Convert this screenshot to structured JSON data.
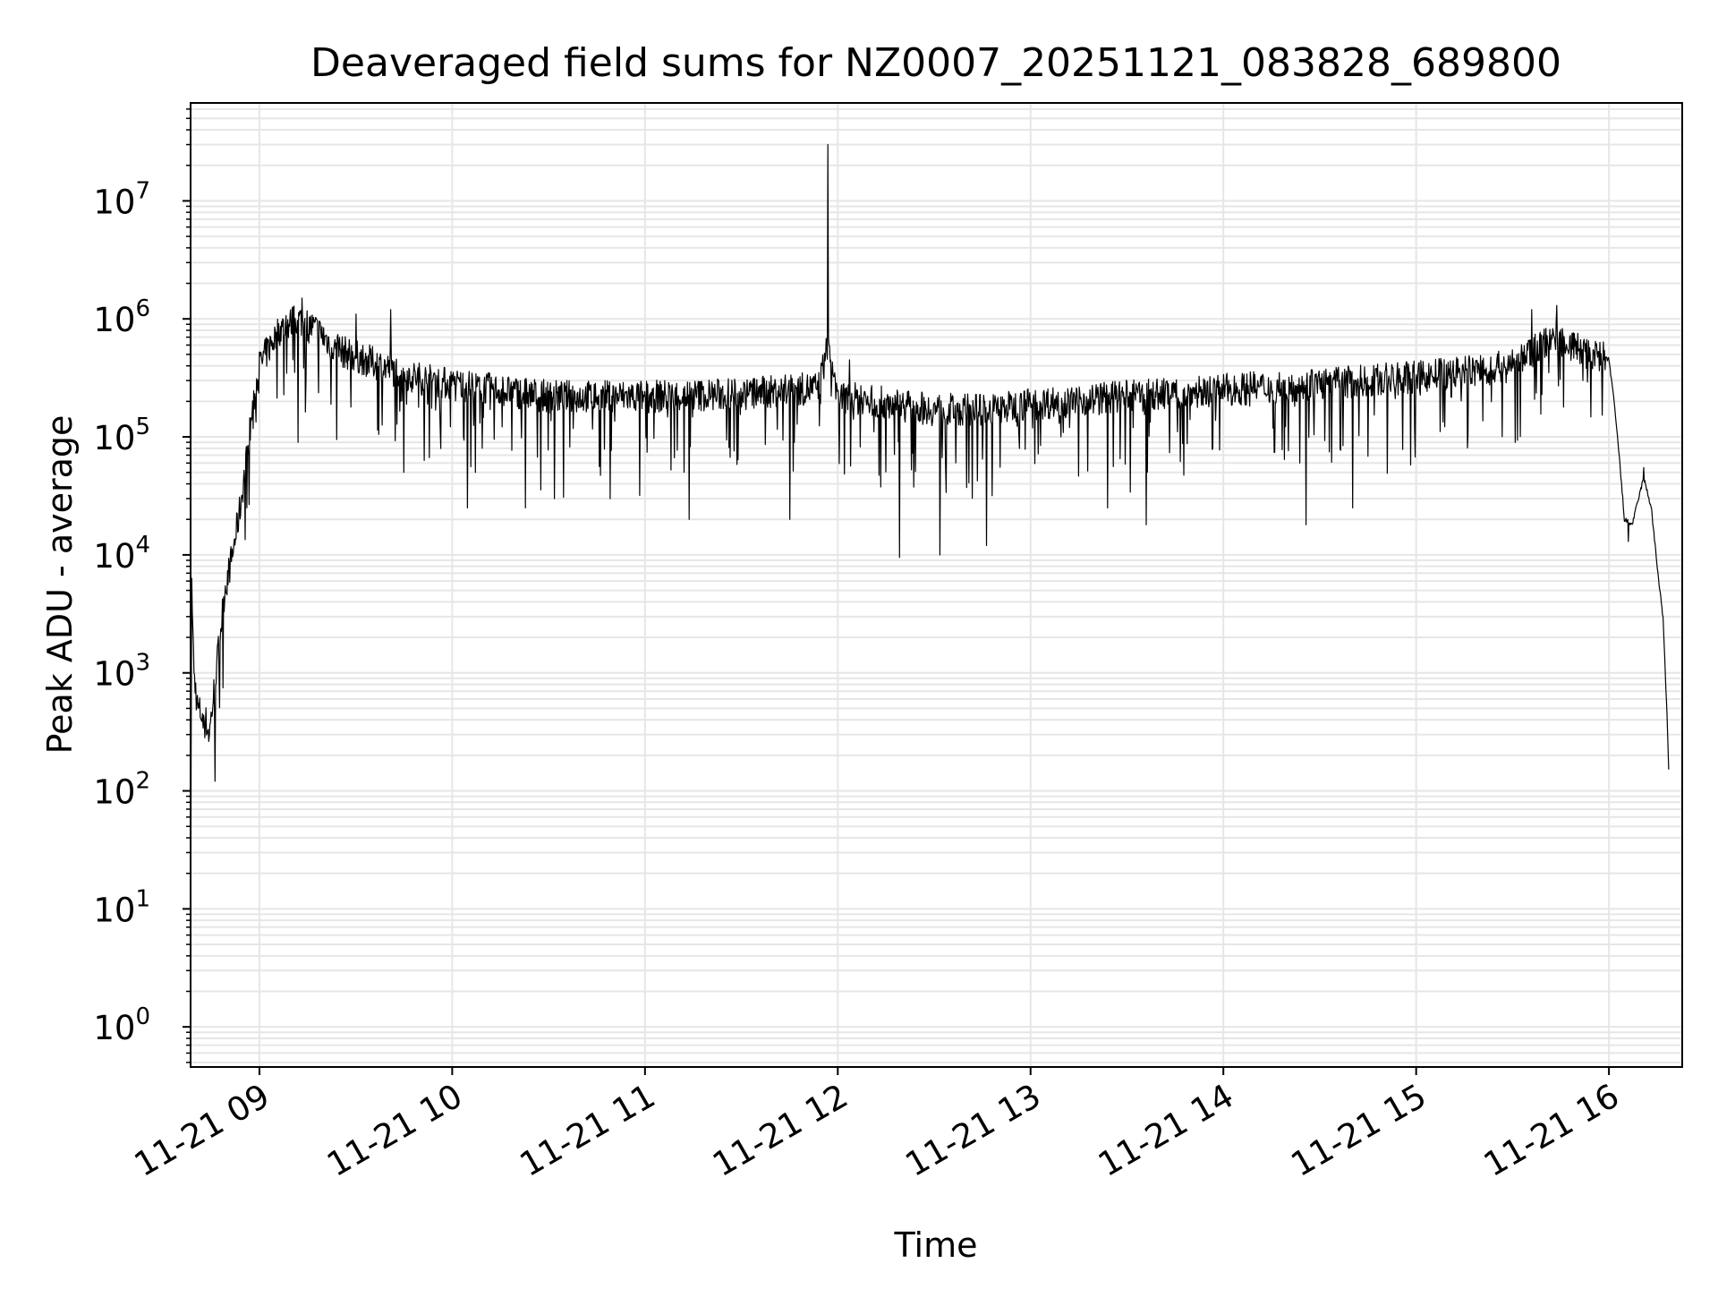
{
  "chart_data": {
    "type": "line",
    "title": "Deaveraged field sums for NZ0007_20251121_083828_689800",
    "xlabel": "Time",
    "ylabel": "Peak ADU - average",
    "yscale": "log",
    "x_unit": "hours since 11-21 00:00",
    "xlim": [
      8.643,
      16.38
    ],
    "ylim_exponent": [
      -0.34,
      7.83
    ],
    "grid": true,
    "x_ticks": [
      {
        "value": 9,
        "label": "11-21 09"
      },
      {
        "value": 10,
        "label": "11-21 10"
      },
      {
        "value": 11,
        "label": "11-21 11"
      },
      {
        "value": 12,
        "label": "11-21 12"
      },
      {
        "value": 13,
        "label": "11-21 13"
      },
      {
        "value": 14,
        "label": "11-21 14"
      },
      {
        "value": 15,
        "label": "11-21 15"
      },
      {
        "value": 16,
        "label": "11-21 16"
      }
    ],
    "y_ticks": [
      {
        "exponent": 0,
        "base": "10",
        "exp_label": "0"
      },
      {
        "exponent": 1,
        "base": "10",
        "exp_label": "1"
      },
      {
        "exponent": 2,
        "base": "10",
        "exp_label": "2"
      },
      {
        "exponent": 3,
        "base": "10",
        "exp_label": "3"
      },
      {
        "exponent": 4,
        "base": "10",
        "exp_label": "4"
      },
      {
        "exponent": 5,
        "base": "10",
        "exp_label": "5"
      },
      {
        "exponent": 6,
        "base": "10",
        "exp_label": "6"
      },
      {
        "exponent": 7,
        "base": "10",
        "exp_label": "7"
      }
    ],
    "series": [
      {
        "name": "deaveraged field sum",
        "color": "#000000",
        "noise_seed": 7,
        "baseline": [
          [
            8.643,
            1
          ],
          [
            8.648,
            7500
          ],
          [
            8.66,
            1000
          ],
          [
            8.68,
            500
          ],
          [
            8.72,
            400
          ],
          [
            8.74,
            300
          ],
          [
            8.78,
            1200
          ],
          [
            8.82,
            5000
          ],
          [
            8.86,
            10000
          ],
          [
            8.9,
            25000
          ],
          [
            8.93,
            60000
          ],
          [
            8.97,
            200000
          ],
          [
            9.0,
            400000
          ],
          [
            9.1,
            800000
          ],
          [
            9.2,
            1000000
          ],
          [
            9.3,
            800000
          ],
          [
            9.4,
            550000
          ],
          [
            9.6,
            420000
          ],
          [
            9.8,
            320000
          ],
          [
            10.0,
            280000
          ],
          [
            10.5,
            220000
          ],
          [
            11.0,
            220000
          ],
          [
            11.5,
            230000
          ],
          [
            11.9,
            260000
          ],
          [
            11.95,
            600000
          ],
          [
            12.0,
            220000
          ],
          [
            12.5,
            170000
          ],
          [
            12.8,
            170000
          ],
          [
            13.0,
            190000
          ],
          [
            13.5,
            220000
          ],
          [
            14.0,
            250000
          ],
          [
            14.5,
            280000
          ],
          [
            15.0,
            320000
          ],
          [
            15.5,
            400000
          ],
          [
            15.7,
            700000
          ],
          [
            15.8,
            600000
          ],
          [
            15.9,
            500000
          ],
          [
            16.0,
            450000
          ],
          [
            16.02,
            250000
          ],
          [
            16.05,
            80000
          ],
          [
            16.08,
            20000
          ],
          [
            16.12,
            18000
          ],
          [
            16.18,
            45000
          ],
          [
            16.22,
            25000
          ],
          [
            16.25,
            8000
          ],
          [
            16.28,
            3000
          ],
          [
            16.3,
            500
          ],
          [
            16.31,
            150
          ]
        ],
        "peaks": [
          [
            9.22,
            1500000
          ],
          [
            9.5,
            1100000
          ],
          [
            9.68,
            1200000
          ],
          [
            11.95,
            30000000
          ],
          [
            12.06,
            450000
          ],
          [
            15.6,
            1200000
          ],
          [
            15.73,
            1300000
          ],
          [
            16.18,
            55000
          ]
        ],
        "dips": [
          [
            9.2,
            90000
          ],
          [
            9.4,
            95000
          ],
          [
            9.75,
            50000
          ],
          [
            10.08,
            25000
          ],
          [
            10.38,
            25000
          ],
          [
            10.53,
            30000
          ],
          [
            10.82,
            30000
          ],
          [
            11.23,
            20000
          ],
          [
            11.75,
            20000
          ],
          [
            12.32,
            9500
          ],
          [
            12.53,
            10000
          ],
          [
            12.77,
            12000
          ],
          [
            13.4,
            25000
          ],
          [
            13.6,
            18000
          ],
          [
            14.43,
            18000
          ],
          [
            14.67,
            25000
          ],
          [
            16.1,
            13000
          ]
        ]
      }
    ]
  }
}
